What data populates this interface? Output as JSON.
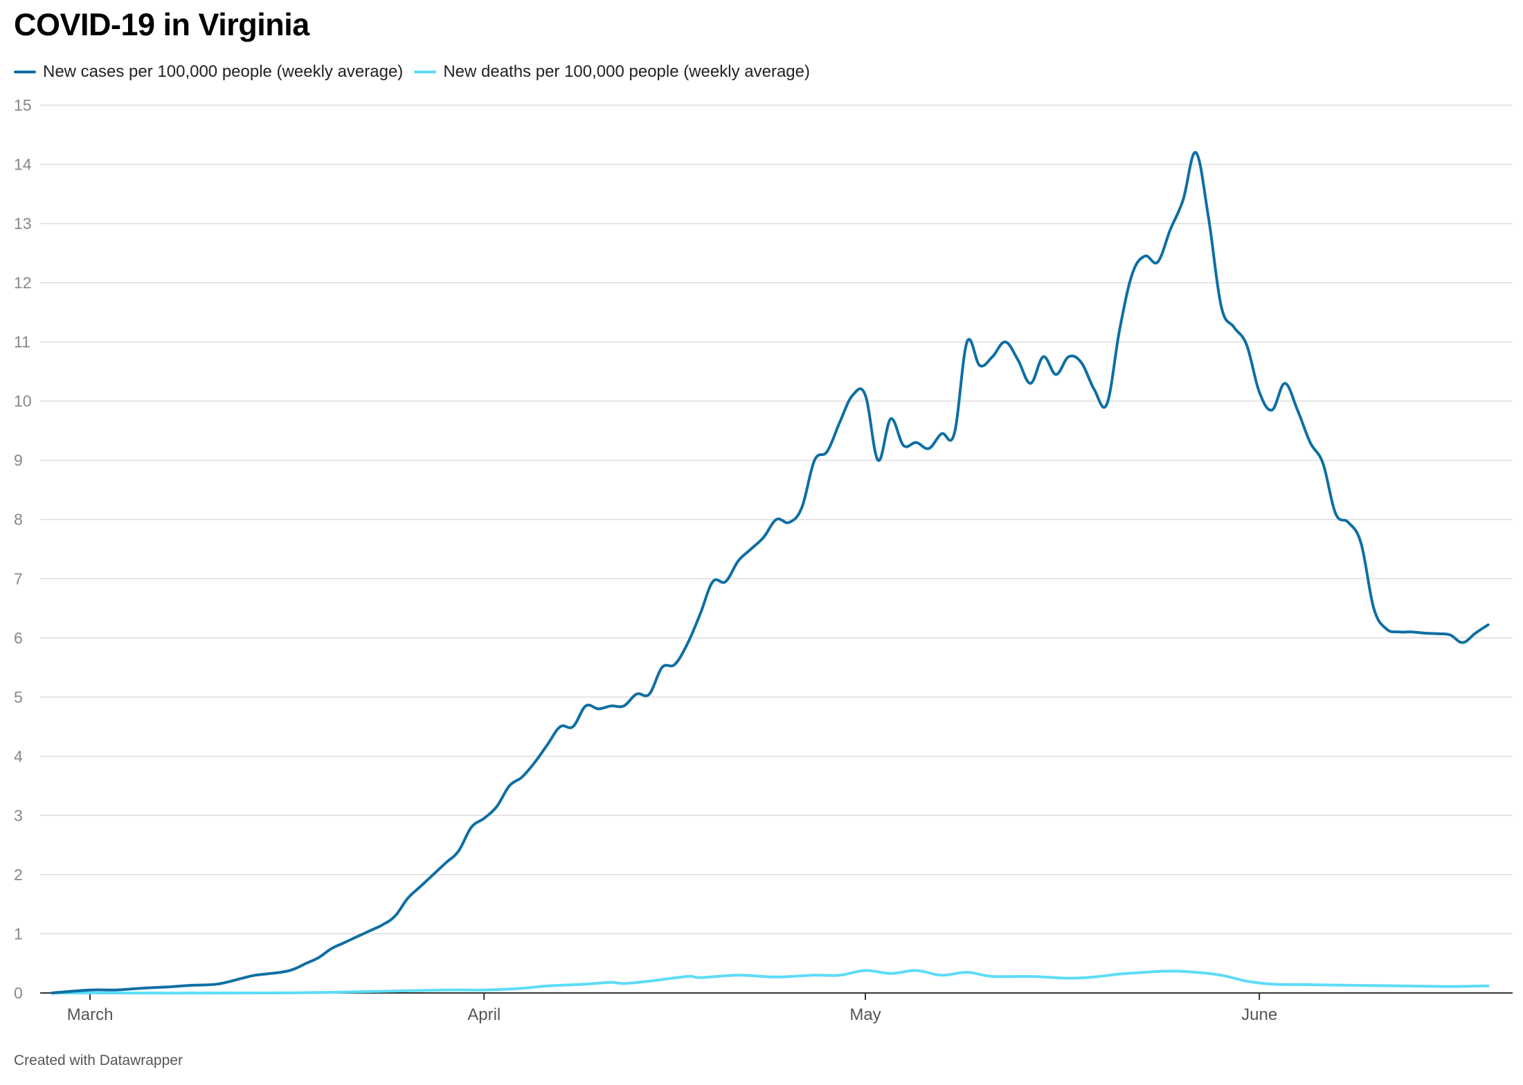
{
  "header": {
    "title": "COVID-19 in Virginia"
  },
  "footer": {
    "credit": "Created with Datawrapper"
  },
  "colors": {
    "cases": "#0e6fa3",
    "deaths": "#5ddcf7",
    "grid": "#dddddd",
    "axis": "#333333",
    "tick_label": "#888888",
    "month_label": "#555555"
  },
  "chart_data": {
    "type": "line",
    "title": "COVID-19 in Virginia",
    "xlabel": "",
    "ylabel": "",
    "x_domain": [
      "2020-02-27",
      "2020-06-20"
    ],
    "ylim": [
      0,
      15
    ],
    "y_ticks": [
      0,
      1,
      2,
      3,
      4,
      5,
      6,
      7,
      8,
      9,
      10,
      11,
      12,
      13,
      14,
      15
    ],
    "x_ticks": [
      {
        "date": "2020-03-01",
        "label": "March"
      },
      {
        "date": "2020-04-01",
        "label": "April"
      },
      {
        "date": "2020-05-01",
        "label": "May"
      },
      {
        "date": "2020-06-01",
        "label": "June"
      }
    ],
    "grid": true,
    "legend_position": "top-left",
    "series": [
      {
        "name": "New cases per 100,000 people (weekly average)",
        "key": "cases",
        "points": [
          [
            "2020-02-27",
            0.0
          ],
          [
            "2020-03-01",
            0.05
          ],
          [
            "2020-03-03",
            0.05
          ],
          [
            "2020-03-05",
            0.08
          ],
          [
            "2020-03-07",
            0.1
          ],
          [
            "2020-03-09",
            0.13
          ],
          [
            "2020-03-11",
            0.15
          ],
          [
            "2020-03-13",
            0.25
          ],
          [
            "2020-03-14",
            0.3
          ],
          [
            "2020-03-16",
            0.35
          ],
          [
            "2020-03-17",
            0.4
          ],
          [
            "2020-03-18",
            0.5
          ],
          [
            "2020-03-19",
            0.6
          ],
          [
            "2020-03-20",
            0.75
          ],
          [
            "2020-03-21",
            0.85
          ],
          [
            "2020-03-22",
            0.95
          ],
          [
            "2020-03-23",
            1.05
          ],
          [
            "2020-03-24",
            1.15
          ],
          [
            "2020-03-25",
            1.3
          ],
          [
            "2020-03-26",
            1.6
          ],
          [
            "2020-03-27",
            1.8
          ],
          [
            "2020-03-28",
            2.0
          ],
          [
            "2020-03-29",
            2.2
          ],
          [
            "2020-03-30",
            2.4
          ],
          [
            "2020-03-31",
            2.8
          ],
          [
            "2020-04-01",
            2.95
          ],
          [
            "2020-04-02",
            3.15
          ],
          [
            "2020-04-03",
            3.5
          ],
          [
            "2020-04-04",
            3.65
          ],
          [
            "2020-04-05",
            3.9
          ],
          [
            "2020-04-06",
            4.2
          ],
          [
            "2020-04-07",
            4.5
          ],
          [
            "2020-04-08",
            4.5
          ],
          [
            "2020-04-09",
            4.85
          ],
          [
            "2020-04-10",
            4.8
          ],
          [
            "2020-04-11",
            4.85
          ],
          [
            "2020-04-12",
            4.85
          ],
          [
            "2020-04-13",
            5.05
          ],
          [
            "2020-04-14",
            5.05
          ],
          [
            "2020-04-15",
            5.5
          ],
          [
            "2020-04-16",
            5.55
          ],
          [
            "2020-04-17",
            5.9
          ],
          [
            "2020-04-18",
            6.4
          ],
          [
            "2020-04-19",
            6.95
          ],
          [
            "2020-04-20",
            6.95
          ],
          [
            "2020-04-21",
            7.3
          ],
          [
            "2020-04-22",
            7.5
          ],
          [
            "2020-04-23",
            7.7
          ],
          [
            "2020-04-24",
            8.0
          ],
          [
            "2020-04-25",
            7.95
          ],
          [
            "2020-04-26",
            8.2
          ],
          [
            "2020-04-27",
            9.0
          ],
          [
            "2020-04-28",
            9.15
          ],
          [
            "2020-04-29",
            9.65
          ],
          [
            "2020-04-30",
            10.1
          ],
          [
            "2020-05-01",
            10.1
          ],
          [
            "2020-05-02",
            9.0
          ],
          [
            "2020-05-03",
            9.7
          ],
          [
            "2020-05-04",
            9.25
          ],
          [
            "2020-05-05",
            9.3
          ],
          [
            "2020-05-06",
            9.2
          ],
          [
            "2020-05-07",
            9.45
          ],
          [
            "2020-05-08",
            9.45
          ],
          [
            "2020-05-09",
            11.0
          ],
          [
            "2020-05-10",
            10.6
          ],
          [
            "2020-05-11",
            10.75
          ],
          [
            "2020-05-12",
            11.0
          ],
          [
            "2020-05-13",
            10.7
          ],
          [
            "2020-05-14",
            10.3
          ],
          [
            "2020-05-15",
            10.75
          ],
          [
            "2020-05-16",
            10.45
          ],
          [
            "2020-05-17",
            10.75
          ],
          [
            "2020-05-18",
            10.65
          ],
          [
            "2020-05-19",
            10.2
          ],
          [
            "2020-05-20",
            9.95
          ],
          [
            "2020-05-21",
            11.2
          ],
          [
            "2020-05-22",
            12.15
          ],
          [
            "2020-05-23",
            12.45
          ],
          [
            "2020-05-24",
            12.35
          ],
          [
            "2020-05-25",
            12.9
          ],
          [
            "2020-05-26",
            13.4
          ],
          [
            "2020-05-27",
            14.2
          ],
          [
            "2020-05-28",
            13.1
          ],
          [
            "2020-05-29",
            11.6
          ],
          [
            "2020-05-30",
            11.25
          ],
          [
            "2020-05-31",
            10.95
          ],
          [
            "2020-06-01",
            10.15
          ],
          [
            "2020-06-02",
            9.85
          ],
          [
            "2020-06-03",
            10.3
          ],
          [
            "2020-06-04",
            9.85
          ],
          [
            "2020-06-05",
            9.3
          ],
          [
            "2020-06-06",
            8.95
          ],
          [
            "2020-06-07",
            8.1
          ],
          [
            "2020-06-08",
            7.95
          ],
          [
            "2020-06-09",
            7.6
          ],
          [
            "2020-06-10",
            6.5
          ],
          [
            "2020-06-11",
            6.15
          ],
          [
            "2020-06-12",
            6.1
          ],
          [
            "2020-06-13",
            6.1
          ],
          [
            "2020-06-14",
            6.08
          ],
          [
            "2020-06-15",
            6.07
          ],
          [
            "2020-06-16",
            6.05
          ],
          [
            "2020-06-17",
            5.92
          ],
          [
            "2020-06-18",
            6.08
          ],
          [
            "2020-06-19",
            6.22
          ]
        ]
      },
      {
        "name": "New deaths per 100,000 people (weekly average)",
        "key": "deaths",
        "points": [
          [
            "2020-02-27",
            0.0
          ],
          [
            "2020-03-15",
            0.0
          ],
          [
            "2020-03-22",
            0.02
          ],
          [
            "2020-03-29",
            0.05
          ],
          [
            "2020-04-01",
            0.05
          ],
          [
            "2020-04-04",
            0.08
          ],
          [
            "2020-04-06",
            0.12
          ],
          [
            "2020-04-09",
            0.15
          ],
          [
            "2020-04-11",
            0.18
          ],
          [
            "2020-04-12",
            0.16
          ],
          [
            "2020-04-14",
            0.2
          ],
          [
            "2020-04-17",
            0.28
          ],
          [
            "2020-04-18",
            0.26
          ],
          [
            "2020-04-21",
            0.3
          ],
          [
            "2020-04-24",
            0.27
          ],
          [
            "2020-04-27",
            0.3
          ],
          [
            "2020-04-29",
            0.3
          ],
          [
            "2020-05-01",
            0.38
          ],
          [
            "2020-05-03",
            0.33
          ],
          [
            "2020-05-05",
            0.38
          ],
          [
            "2020-05-07",
            0.3
          ],
          [
            "2020-05-09",
            0.35
          ],
          [
            "2020-05-11",
            0.28
          ],
          [
            "2020-05-14",
            0.28
          ],
          [
            "2020-05-17",
            0.25
          ],
          [
            "2020-05-19",
            0.27
          ],
          [
            "2020-05-21",
            0.32
          ],
          [
            "2020-05-23",
            0.35
          ],
          [
            "2020-05-25",
            0.37
          ],
          [
            "2020-05-27",
            0.35
          ],
          [
            "2020-05-29",
            0.3
          ],
          [
            "2020-05-31",
            0.2
          ],
          [
            "2020-06-02",
            0.15
          ],
          [
            "2020-06-05",
            0.14
          ],
          [
            "2020-06-08",
            0.13
          ],
          [
            "2020-06-12",
            0.12
          ],
          [
            "2020-06-16",
            0.11
          ],
          [
            "2020-06-19",
            0.12
          ]
        ]
      }
    ]
  }
}
